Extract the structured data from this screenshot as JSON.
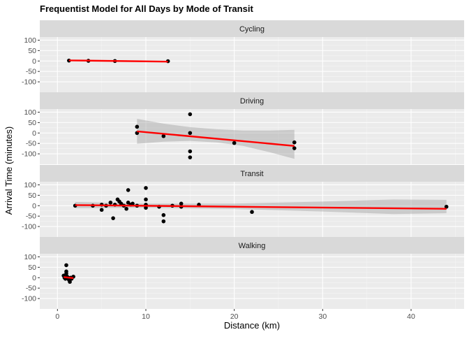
{
  "chart_data": {
    "type": "scatter",
    "title": "Frequentist Model for All Days by Mode of Transit",
    "xlabel": "Distance (km)",
    "ylabel": "Arrival Time (minutes)",
    "xlim": [
      -2,
      46
    ],
    "ylim": [
      -150,
      115
    ],
    "x_ticks": [
      0,
      10,
      20,
      30,
      40
    ],
    "y_ticks": [
      -100,
      -50,
      0,
      50,
      100
    ],
    "grid": true,
    "facets": [
      {
        "name": "Cycling",
        "points": [
          [
            1.3,
            2
          ],
          [
            3.5,
            1
          ],
          [
            6.5,
            0
          ],
          [
            12.5,
            -1
          ]
        ],
        "fit": {
          "x": [
            1.3,
            12.5
          ],
          "y": [
            3,
            -3
          ]
        },
        "band": []
      },
      {
        "name": "Driving",
        "points": [
          [
            9,
            30
          ],
          [
            9,
            0
          ],
          [
            12,
            -15
          ],
          [
            15,
            90
          ],
          [
            15,
            0
          ],
          [
            15,
            -88
          ],
          [
            15,
            -117
          ],
          [
            20,
            -48
          ],
          [
            26.8,
            -45
          ],
          [
            26.8,
            -73
          ]
        ],
        "fit": {
          "x": [
            9,
            26.8
          ],
          "y": [
            8,
            -62
          ]
        },
        "band": [
          [
            9,
            68,
            -52
          ],
          [
            12,
            45,
            -42
          ],
          [
            15,
            28,
            -38
          ],
          [
            18,
            18,
            -45
          ],
          [
            21,
            12,
            -62
          ],
          [
            24,
            12,
            -92
          ],
          [
            26.8,
            15,
            -124
          ]
        ]
      },
      {
        "name": "Transit",
        "points": [
          [
            2,
            0
          ],
          [
            4,
            0
          ],
          [
            5,
            5
          ],
          [
            5,
            -20
          ],
          [
            5.5,
            0
          ],
          [
            6,
            15
          ],
          [
            6.3,
            -60
          ],
          [
            6.5,
            5
          ],
          [
            6.8,
            30
          ],
          [
            7,
            20
          ],
          [
            7.2,
            10
          ],
          [
            7.5,
            0
          ],
          [
            7.8,
            -15
          ],
          [
            8,
            75
          ],
          [
            8,
            15
          ],
          [
            8.3,
            5
          ],
          [
            8.5,
            10
          ],
          [
            9,
            0
          ],
          [
            10,
            85
          ],
          [
            10,
            30
          ],
          [
            10,
            5
          ],
          [
            10,
            -10
          ],
          [
            11.5,
            -5
          ],
          [
            12,
            -45
          ],
          [
            12,
            -75
          ],
          [
            13,
            0
          ],
          [
            14,
            10
          ],
          [
            14,
            -5
          ],
          [
            16,
            5
          ],
          [
            22,
            -30
          ],
          [
            44,
            -5
          ]
        ],
        "fit": {
          "x": [
            2,
            44
          ],
          "y": [
            3,
            -15
          ]
        },
        "band": [
          [
            2,
            18,
            -12
          ],
          [
            10,
            10,
            -10
          ],
          [
            20,
            10,
            -16
          ],
          [
            30,
            20,
            -28
          ],
          [
            38,
            30,
            -40
          ],
          [
            44,
            28,
            -36
          ]
        ]
      },
      {
        "name": "Walking",
        "points": [
          [
            0.7,
            10
          ],
          [
            0.8,
            0
          ],
          [
            0.9,
            -5
          ],
          [
            1.0,
            30
          ],
          [
            1.0,
            60
          ],
          [
            1.0,
            20
          ],
          [
            1.1,
            5
          ],
          [
            1.2,
            0
          ],
          [
            1.3,
            -10
          ],
          [
            1.4,
            -20
          ],
          [
            1.5,
            0
          ],
          [
            1.6,
            -5
          ],
          [
            1.8,
            5
          ]
        ],
        "fit": {
          "x": [
            0.7,
            1.8
          ],
          "y": [
            3,
            -2
          ]
        },
        "band": []
      }
    ]
  }
}
